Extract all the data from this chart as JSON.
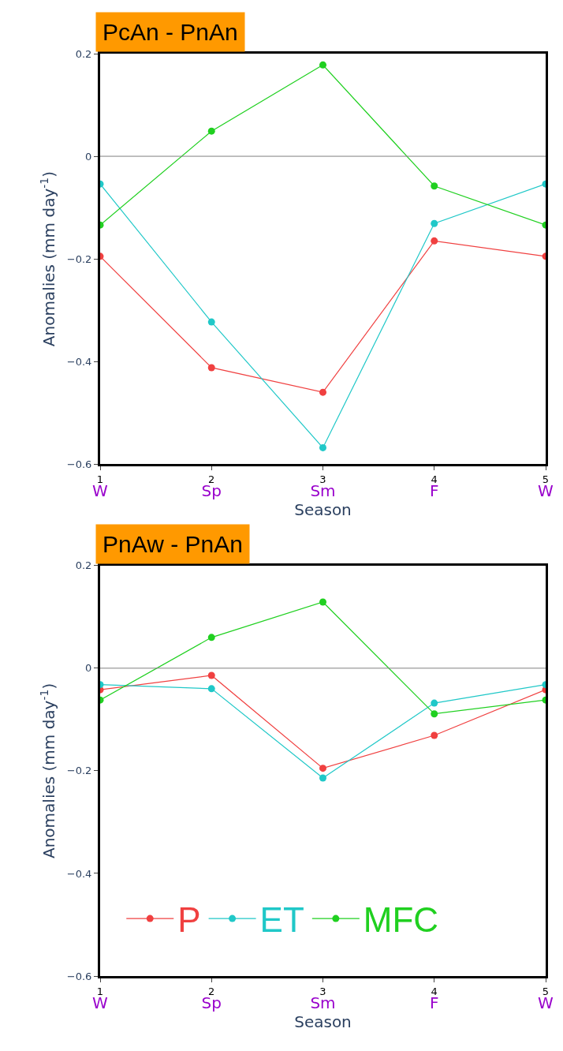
{
  "chart_data": [
    {
      "type": "line",
      "title": "PcAn - PnAn",
      "xlabel": "Season",
      "ylabel": "Anomalies (mm day$^{-1}$)",
      "x": [
        1,
        2,
        3,
        4,
        5
      ],
      "xlim": [
        1,
        5
      ],
      "xticks": [
        {
          "value": 1,
          "label": "1\nW"
        },
        {
          "value": 2,
          "label": "2\nSp"
        },
        {
          "value": 3,
          "label": "3\nSm"
        },
        {
          "value": 4,
          "label": "4\nF"
        },
        {
          "value": 5,
          "label": "5\nW"
        }
      ],
      "ylim": [
        -0.6,
        0.2
      ],
      "yticks": [
        {
          "value": -0.6,
          "label": "−0.6"
        },
        {
          "value": -0.4,
          "label": "−0.4"
        },
        {
          "value": -0.2,
          "label": "−0.2"
        },
        {
          "value": 0,
          "label": "0"
        },
        {
          "value": 0.2,
          "label": "0.2"
        }
      ],
      "series": [
        {
          "color": "#f04040",
          "values": [
            -0.195,
            -0.412,
            -0.46,
            -0.165,
            -0.195
          ]
        },
        {
          "color": "#20c8c8",
          "values": [
            -0.054,
            -0.323,
            -0.568,
            -0.131,
            -0.054
          ]
        },
        {
          "color": "#20d020",
          "values": [
            -0.134,
            0.049,
            0.178,
            -0.058,
            -0.134
          ]
        }
      ],
      "ref_lines": [
        {
          "axis": "y",
          "value": 0,
          "color": "#808080"
        }
      ],
      "marker": "circle",
      "legend": false
    },
    {
      "type": "line",
      "title": "PnAw - PnAn",
      "xlabel": "Season",
      "ylabel": "Anomalies (mm day$^{-1}$)",
      "x": [
        1,
        2,
        3,
        4,
        5
      ],
      "xlim": [
        1,
        5
      ],
      "xticks": [
        {
          "value": 1,
          "label": "1\nW"
        },
        {
          "value": 2,
          "label": "2\nSp"
        },
        {
          "value": 3,
          "label": "3\nSm"
        },
        {
          "value": 4,
          "label": "4\nF"
        },
        {
          "value": 5,
          "label": "5\nW"
        }
      ],
      "ylim": [
        -0.6,
        0.2
      ],
      "yticks": [
        {
          "value": -0.6,
          "label": "−0.6"
        },
        {
          "value": -0.4,
          "label": "−0.4"
        },
        {
          "value": -0.2,
          "label": "−0.2"
        },
        {
          "value": 0,
          "label": "0"
        },
        {
          "value": 0.2,
          "label": "0.2"
        }
      ],
      "series": [
        {
          "name": "P",
          "color": "#f04040",
          "values": [
            -0.042,
            -0.014,
            -0.195,
            -0.131,
            -0.042
          ]
        },
        {
          "name": "ET",
          "color": "#20c8c8",
          "values": [
            -0.032,
            -0.04,
            -0.214,
            -0.068,
            -0.032
          ]
        },
        {
          "name": "MFC",
          "color": "#20d020",
          "values": [
            -0.062,
            0.06,
            0.129,
            -0.089,
            -0.062
          ]
        }
      ],
      "ref_lines": [
        {
          "axis": "y",
          "value": 0,
          "color": "#808080"
        }
      ],
      "marker": "circle",
      "legend": "bottom"
    }
  ]
}
